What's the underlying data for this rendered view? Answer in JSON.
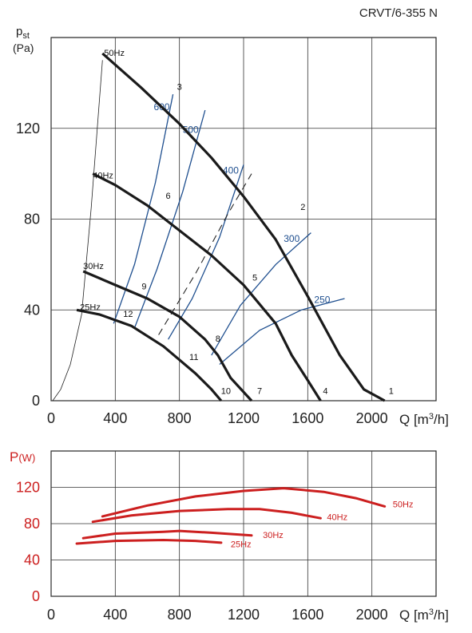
{
  "chart_data": [
    {
      "type": "line",
      "title": "CRVT/6-355 N",
      "ylabel": "p",
      "ylabel_sub": "st",
      "yunit": "(Pa)",
      "xlabel": "Q [m³/h]",
      "xlim": [
        0,
        2400
      ],
      "ylim": [
        0,
        160
      ],
      "xticks": [
        0,
        400,
        800,
        1200,
        1600,
        2000
      ],
      "yticks": [
        0,
        40,
        80,
        120
      ],
      "grid": true,
      "fan_curves": [
        {
          "name": "50Hz",
          "label_at": [
            330,
            152
          ],
          "points": [
            [
              320,
              153
            ],
            [
              560,
              138
            ],
            [
              800,
              122
            ],
            [
              1000,
              107
            ],
            [
              1200,
              90
            ],
            [
              1400,
              71
            ],
            [
              1600,
              46
            ],
            [
              1800,
              20
            ],
            [
              1950,
              5
            ],
            [
              2080,
              0
            ]
          ]
        },
        {
          "name": "40Hz",
          "label_at": [
            260,
            98
          ],
          "points": [
            [
              260,
              100
            ],
            [
              400,
              95
            ],
            [
              600,
              86
            ],
            [
              800,
              75
            ],
            [
              1000,
              64
            ],
            [
              1200,
              51
            ],
            [
              1400,
              34
            ],
            [
              1500,
              20
            ],
            [
              1600,
              9
            ],
            [
              1680,
              0
            ]
          ]
        },
        {
          "name": "30Hz",
          "label_at": [
            200,
            58
          ],
          "points": [
            [
              200,
              57
            ],
            [
              400,
              51
            ],
            [
              600,
              45
            ],
            [
              800,
              37
            ],
            [
              960,
              27
            ],
            [
              1040,
              20
            ],
            [
              1120,
              10
            ],
            [
              1250,
              0
            ]
          ]
        },
        {
          "name": "25Hz",
          "label_at": [
            180,
            40
          ],
          "points": [
            [
              160,
              40
            ],
            [
              300,
              38
            ],
            [
              500,
              33
            ],
            [
              700,
              24
            ],
            [
              800,
              18
            ],
            [
              900,
              12
            ],
            [
              1000,
              5
            ],
            [
              1060,
              0
            ]
          ]
        }
      ],
      "system_curves": [
        {
          "name": "600",
          "points": [
            [
              390,
              34
            ],
            [
              520,
              60
            ],
            [
              650,
              96
            ],
            [
              760,
              135
            ]
          ],
          "label_at": [
            690,
            128
          ]
        },
        {
          "name": "500",
          "points": [
            [
              520,
              32
            ],
            [
              660,
              58
            ],
            [
              820,
              92
            ],
            [
              960,
              128
            ]
          ],
          "label_at": [
            870,
            118
          ]
        },
        {
          "name": "400",
          "points": [
            [
              730,
              27
            ],
            [
              880,
              45
            ],
            [
              1050,
              72
            ],
            [
              1200,
              104
            ]
          ],
          "label_at": [
            1120,
            100
          ]
        },
        {
          "name": "300",
          "points": [
            [
              1000,
              20
            ],
            [
              1180,
              42
            ],
            [
              1400,
              60
            ],
            [
              1620,
              74
            ]
          ],
          "label_at": [
            1500,
            70
          ]
        },
        {
          "name": "250",
          "points": [
            [
              1050,
              16
            ],
            [
              1300,
              31
            ],
            [
              1560,
              40
            ],
            [
              1830,
              45
            ]
          ],
          "label_at": [
            1690,
            43
          ]
        }
      ],
      "dashed_curve": {
        "points": [
          [
            670,
            29
          ],
          [
            900,
            56
          ],
          [
            1100,
            82
          ],
          [
            1250,
            100
          ]
        ]
      },
      "efficiency_envelope": {
        "points": [
          [
            10,
            0
          ],
          [
            60,
            5
          ],
          [
            120,
            16
          ],
          [
            190,
            38
          ],
          [
            250,
            85
          ],
          [
            320,
            150
          ]
        ]
      },
      "point_labels": [
        {
          "name": "1",
          "at": [
            2120,
            3
          ]
        },
        {
          "name": "2",
          "at": [
            1570,
            84
          ]
        },
        {
          "name": "3",
          "at": [
            800,
            137
          ]
        },
        {
          "name": "4",
          "at": [
            1710,
            3
          ]
        },
        {
          "name": "5",
          "at": [
            1270,
            53
          ]
        },
        {
          "name": "6",
          "at": [
            730,
            89
          ]
        },
        {
          "name": "7",
          "at": [
            1300,
            3
          ]
        },
        {
          "name": "8",
          "at": [
            1040,
            26
          ]
        },
        {
          "name": "9",
          "at": [
            580,
            49
          ]
        },
        {
          "name": "10",
          "at": [
            1090,
            3
          ]
        },
        {
          "name": "11",
          "at": [
            890,
            18
          ]
        },
        {
          "name": "12",
          "at": [
            480,
            37
          ]
        }
      ]
    },
    {
      "type": "line",
      "ylabel": "P(W)",
      "xlabel": "Q [m³/h]",
      "xlim": [
        0,
        2400
      ],
      "ylim": [
        0,
        160
      ],
      "xticks": [
        0,
        400,
        800,
        1200,
        1600,
        2000
      ],
      "yticks": [
        0,
        40,
        80,
        120
      ],
      "grid": true,
      "series": [
        {
          "name": "50Hz",
          "label_at": [
            2130,
            98
          ],
          "points": [
            [
              320,
              88
            ],
            [
              600,
              100
            ],
            [
              900,
              110
            ],
            [
              1200,
              116
            ],
            [
              1450,
              119
            ],
            [
              1700,
              115
            ],
            [
              1900,
              108
            ],
            [
              2080,
              99
            ]
          ]
        },
        {
          "name": "40Hz",
          "label_at": [
            1720,
            84
          ],
          "points": [
            [
              260,
              82
            ],
            [
              500,
              89
            ],
            [
              800,
              94
            ],
            [
              1100,
              96
            ],
            [
              1300,
              96
            ],
            [
              1500,
              92
            ],
            [
              1680,
              86
            ]
          ]
        },
        {
          "name": "30Hz",
          "label_at": [
            1320,
            64
          ],
          "points": [
            [
              200,
              64
            ],
            [
              400,
              69
            ],
            [
              700,
              71
            ],
            [
              800,
              72
            ],
            [
              1000,
              70
            ],
            [
              1250,
              67
            ]
          ]
        },
        {
          "name": "25Hz",
          "label_at": [
            1120,
            54
          ],
          "points": [
            [
              160,
              58
            ],
            [
              400,
              61
            ],
            [
              700,
              62
            ],
            [
              900,
              61
            ],
            [
              1060,
              59
            ]
          ]
        }
      ]
    }
  ]
}
